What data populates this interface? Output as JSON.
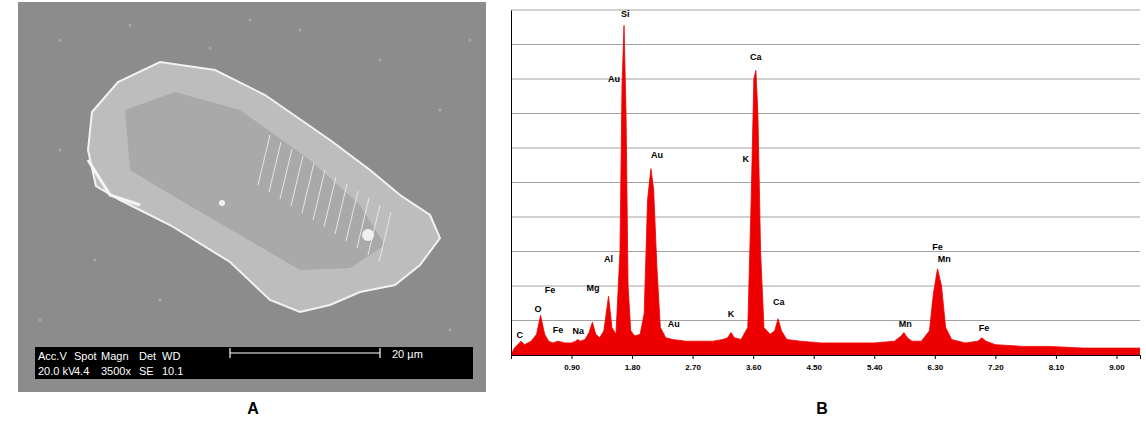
{
  "chart_data": {
    "type": "area",
    "color": "#ee0000",
    "grid": true,
    "tick_labels": "x",
    "xlim": [
      0,
      9.35
    ],
    "ylim": [
      0,
      100
    ],
    "xticks": [
      {
        "value": 0.9,
        "label": "0.90"
      },
      {
        "value": 1.8,
        "label": "1.80"
      },
      {
        "value": 2.7,
        "label": "2.70"
      },
      {
        "value": 3.6,
        "label": "3.60"
      },
      {
        "value": 4.5,
        "label": "4.50"
      },
      {
        "value": 5.4,
        "label": "5.40"
      },
      {
        "value": 6.3,
        "label": "6.30"
      },
      {
        "value": 7.2,
        "label": "7.20"
      },
      {
        "value": 8.1,
        "label": "8.10"
      },
      {
        "value": 9.0,
        "label": "9.00"
      }
    ],
    "yticks": [
      0,
      10,
      20,
      30,
      40,
      50,
      60,
      70,
      80,
      90,
      100
    ],
    "x": [
      0.0,
      0.05,
      0.1,
      0.15,
      0.2,
      0.3,
      0.38,
      0.44,
      0.5,
      0.56,
      0.62,
      0.7,
      0.8,
      0.9,
      0.96,
      0.99,
      1.03,
      1.1,
      1.16,
      1.21,
      1.26,
      1.32,
      1.38,
      1.45,
      1.5,
      1.56,
      1.62,
      1.65,
      1.68,
      1.71,
      1.74,
      1.78,
      1.84,
      1.92,
      1.98,
      2.03,
      2.08,
      2.12,
      2.17,
      2.22,
      2.3,
      2.4,
      2.6,
      2.8,
      3.0,
      3.15,
      3.22,
      3.27,
      3.32,
      3.42,
      3.52,
      3.57,
      3.61,
      3.64,
      3.67,
      3.71,
      3.76,
      3.85,
      3.92,
      3.97,
      4.02,
      4.1,
      4.3,
      4.6,
      5.0,
      5.4,
      5.7,
      5.8,
      5.84,
      5.89,
      5.96,
      6.1,
      6.22,
      6.28,
      6.34,
      6.4,
      6.46,
      6.55,
      6.75,
      6.94,
      7.0,
      7.06,
      7.2,
      7.6,
      8.0,
      8.5,
      9.0,
      9.35
    ],
    "values": [
      0,
      2,
      3,
      4,
      3,
      4,
      6,
      11.5,
      6,
      4,
      3.5,
      4,
      3.5,
      3.5,
      4,
      4.5,
      4,
      4.5,
      6.5,
      9.5,
      6,
      5,
      7,
      17,
      8,
      6,
      30,
      78,
      95.5,
      70,
      20,
      7,
      5.5,
      6,
      12,
      45,
      54,
      48,
      25,
      8,
      5,
      4.5,
      4,
      4,
      4,
      4.5,
      5,
      6.5,
      5,
      4.5,
      8,
      45,
      80,
      82.5,
      70,
      30,
      8,
      6,
      7,
      10.5,
      7,
      4.5,
      4,
      3.5,
      3.5,
      3.5,
      4,
      5.5,
      6.5,
      5,
      4,
      4,
      7,
      18,
      25,
      20,
      8,
      4.5,
      3.5,
      4,
      5,
      4,
      3,
      2.5,
      2.5,
      2,
      2,
      2
    ],
    "annotations": [
      {
        "text": "C",
        "x": 0.13,
        "y": 5
      },
      {
        "text": "Fe",
        "x": 0.58,
        "y": 18
      },
      {
        "text": "O",
        "x": 0.4,
        "y": 12.5
      },
      {
        "text": "Fe",
        "x": 0.7,
        "y": 6.5
      },
      {
        "text": "Na",
        "x": 1.0,
        "y": 6
      },
      {
        "text": "Mg",
        "x": 1.22,
        "y": 18.5
      },
      {
        "text": "Al",
        "x": 1.45,
        "y": 27
      },
      {
        "text": "Si",
        "x": 1.7,
        "y": 98
      },
      {
        "text": "Au",
        "x": 1.53,
        "y": 79
      },
      {
        "text": "Au",
        "x": 2.17,
        "y": 57
      },
      {
        "text": "Au",
        "x": 2.42,
        "y": 8
      },
      {
        "text": "K",
        "x": 3.27,
        "y": 11
      },
      {
        "text": "K",
        "x": 3.49,
        "y": 56
      },
      {
        "text": "Ca",
        "x": 3.64,
        "y": 85.5
      },
      {
        "text": "Ca",
        "x": 3.98,
        "y": 14.5
      },
      {
        "text": "Mn",
        "x": 5.86,
        "y": 8
      },
      {
        "text": "Fe",
        "x": 6.34,
        "y": 30.5
      },
      {
        "text": "Mn",
        "x": 6.44,
        "y": 27
      },
      {
        "text": "Fe",
        "x": 7.03,
        "y": 7
      }
    ]
  },
  "image_panel": {
    "info_header": [
      "Acc.V",
      "Spot",
      "Magn",
      "Det",
      "WD"
    ],
    "info_values": [
      "20.0 kV",
      "4.4",
      "3500x",
      "SE",
      "10.1"
    ],
    "scale_bar": "20 µm"
  },
  "panel_labels": [
    "A",
    "B"
  ]
}
